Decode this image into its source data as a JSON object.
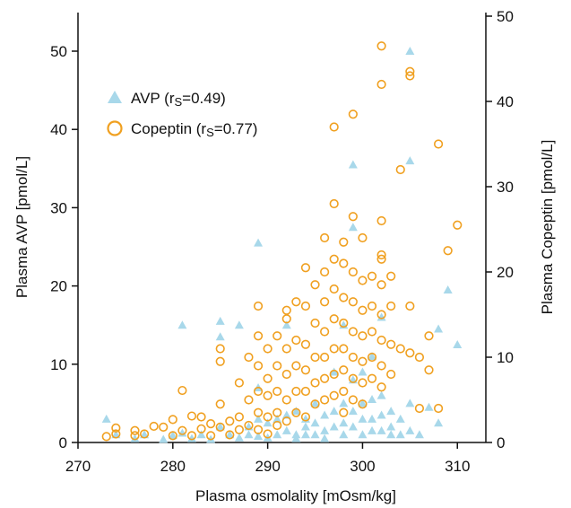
{
  "chart_data": {
    "type": "scatter",
    "xlabel": "Plasma osmolality [mOsm/kg]",
    "ylabel_left": "Plasma AVP [pmol/L]",
    "ylabel_right": "Plasma Copeptin [pmol/L]",
    "xlim": [
      270,
      313
    ],
    "ylim_left": [
      0,
      50
    ],
    "ylim_right": [
      0,
      50
    ],
    "xticks": [
      270,
      280,
      290,
      300,
      310
    ],
    "yticks_left": [
      0,
      10,
      20,
      30,
      40,
      50
    ],
    "yticks_right": [
      0,
      10,
      20,
      30,
      40,
      50
    ],
    "grid": false,
    "legend_position": "top-left",
    "legend": [
      {
        "marker": "triangle",
        "prefix": "AVP (r",
        "sub": "S",
        "suffix": "=0.49)"
      },
      {
        "marker": "circle",
        "prefix": "Copeptin (r",
        "sub": "S",
        "suffix": "=0.77)"
      }
    ],
    "colors": {
      "AVP": "#a8d8ea",
      "Copeptin": "#f0a020",
      "axis": "#111111"
    },
    "series": [
      {
        "name": "AVP",
        "axis": "left",
        "marker": "triangle",
        "points": [
          [
            273,
            3.0
          ],
          [
            274,
            1.0
          ],
          [
            276,
            0.5
          ],
          [
            277,
            1.0
          ],
          [
            279,
            0.4
          ],
          [
            280,
            0.9
          ],
          [
            281,
            15.0
          ],
          [
            281,
            1.2
          ],
          [
            282,
            0.5
          ],
          [
            283,
            1.0
          ],
          [
            284,
            0.4
          ],
          [
            285,
            15.5
          ],
          [
            285,
            13.5
          ],
          [
            285,
            2.0
          ],
          [
            286,
            1.0
          ],
          [
            287,
            15.0
          ],
          [
            287,
            0.6
          ],
          [
            288,
            2.0
          ],
          [
            288,
            1.0
          ],
          [
            289,
            25.5
          ],
          [
            289,
            7.0
          ],
          [
            289,
            3.0
          ],
          [
            289,
            0.8
          ],
          [
            290,
            2.5
          ],
          [
            290,
            0.6
          ],
          [
            291,
            3.0
          ],
          [
            291,
            1.0
          ],
          [
            292,
            15.0
          ],
          [
            292,
            3.5
          ],
          [
            292,
            1.5
          ],
          [
            293,
            4.0
          ],
          [
            293,
            1.0
          ],
          [
            293,
            0.5
          ],
          [
            294,
            3.0
          ],
          [
            294,
            2.0
          ],
          [
            294,
            1.0
          ],
          [
            295,
            5.0
          ],
          [
            295,
            2.5
          ],
          [
            295,
            1.0
          ],
          [
            296,
            3.5
          ],
          [
            296,
            1.5
          ],
          [
            296,
            0.5
          ],
          [
            297,
            9.0
          ],
          [
            297,
            4.0
          ],
          [
            297,
            2.0
          ],
          [
            298,
            15.0
          ],
          [
            298,
            5.0
          ],
          [
            298,
            2.5
          ],
          [
            298,
            1.0
          ],
          [
            299,
            35.5
          ],
          [
            299,
            27.5
          ],
          [
            299,
            8.0
          ],
          [
            299,
            4.0
          ],
          [
            299,
            2.0
          ],
          [
            300,
            9.0
          ],
          [
            300,
            5.0
          ],
          [
            300,
            3.0
          ],
          [
            300,
            1.0
          ],
          [
            301,
            11.0
          ],
          [
            301,
            5.5
          ],
          [
            301,
            3.0
          ],
          [
            301,
            1.5
          ],
          [
            302,
            16.0
          ],
          [
            302,
            6.0
          ],
          [
            302,
            3.5
          ],
          [
            302,
            1.5
          ],
          [
            303,
            4.0
          ],
          [
            303,
            2.0
          ],
          [
            303,
            1.0
          ],
          [
            304,
            3.0
          ],
          [
            304,
            1.0
          ],
          [
            305,
            50.0
          ],
          [
            305,
            36.0
          ],
          [
            305,
            5.0
          ],
          [
            305,
            1.5
          ],
          [
            306,
            1.0
          ],
          [
            307,
            4.5
          ],
          [
            308,
            14.5
          ],
          [
            308,
            2.5
          ],
          [
            309,
            19.5
          ],
          [
            310,
            12.5
          ]
        ]
      },
      {
        "name": "Copeptin",
        "axis": "right",
        "marker": "circle",
        "points": [
          [
            273,
            0.7
          ],
          [
            274,
            1.0
          ],
          [
            274,
            1.7
          ],
          [
            276,
            0.8
          ],
          [
            276,
            1.4
          ],
          [
            277,
            1.0
          ],
          [
            278,
            1.9
          ],
          [
            279,
            1.8
          ],
          [
            280,
            0.8
          ],
          [
            280,
            2.7
          ],
          [
            281,
            6.1
          ],
          [
            281,
            1.4
          ],
          [
            282,
            0.8
          ],
          [
            282,
            3.1
          ],
          [
            283,
            1.6
          ],
          [
            283,
            3.0
          ],
          [
            284,
            0.8
          ],
          [
            284,
            2.2
          ],
          [
            285,
            11.0
          ],
          [
            285,
            9.5
          ],
          [
            285,
            4.5
          ],
          [
            285,
            1.8
          ],
          [
            286,
            0.9
          ],
          [
            286,
            2.5
          ],
          [
            287,
            7.0
          ],
          [
            287,
            3.0
          ],
          [
            287,
            1.5
          ],
          [
            288,
            10.0
          ],
          [
            288,
            5.0
          ],
          [
            288,
            2.0
          ],
          [
            289,
            16.0
          ],
          [
            289,
            12.5
          ],
          [
            289,
            9.0
          ],
          [
            289,
            6.0
          ],
          [
            289,
            3.5
          ],
          [
            289,
            1.5
          ],
          [
            290,
            11.0
          ],
          [
            290,
            7.5
          ],
          [
            290,
            5.5
          ],
          [
            290,
            3.0
          ],
          [
            290,
            1.0
          ],
          [
            291,
            12.5
          ],
          [
            291,
            9.0
          ],
          [
            291,
            6.0
          ],
          [
            291,
            3.5
          ],
          [
            291,
            2.0
          ],
          [
            292,
            15.5
          ],
          [
            292,
            14.5
          ],
          [
            292,
            11.0
          ],
          [
            292,
            8.0
          ],
          [
            292,
            5.0
          ],
          [
            292,
            2.5
          ],
          [
            293,
            16.5
          ],
          [
            293,
            12.0
          ],
          [
            293,
            9.0
          ],
          [
            293,
            6.0
          ],
          [
            293,
            3.5
          ],
          [
            294,
            20.5
          ],
          [
            294,
            16.0
          ],
          [
            294,
            11.5
          ],
          [
            294,
            8.5
          ],
          [
            294,
            6.0
          ],
          [
            294,
            3.0
          ],
          [
            295,
            18.5
          ],
          [
            295,
            14.0
          ],
          [
            295,
            10.0
          ],
          [
            295,
            7.0
          ],
          [
            295,
            4.5
          ],
          [
            296,
            24.0
          ],
          [
            296,
            20.0
          ],
          [
            296,
            16.5
          ],
          [
            296,
            13.0
          ],
          [
            296,
            10.0
          ],
          [
            296,
            7.5
          ],
          [
            296,
            5.0
          ],
          [
            297,
            37.0
          ],
          [
            297,
            28.0
          ],
          [
            297,
            21.5
          ],
          [
            297,
            18.0
          ],
          [
            297,
            14.5
          ],
          [
            297,
            11.0
          ],
          [
            297,
            8.0
          ],
          [
            297,
            5.5
          ],
          [
            298,
            23.5
          ],
          [
            298,
            21.0
          ],
          [
            298,
            17.0
          ],
          [
            298,
            14.0
          ],
          [
            298,
            11.0
          ],
          [
            298,
            8.5
          ],
          [
            298,
            6.0
          ],
          [
            298,
            3.5
          ],
          [
            299,
            38.5
          ],
          [
            299,
            26.5
          ],
          [
            299,
            20.0
          ],
          [
            299,
            16.5
          ],
          [
            299,
            13.0
          ],
          [
            299,
            10.0
          ],
          [
            299,
            7.5
          ],
          [
            299,
            5.0
          ],
          [
            300,
            24.0
          ],
          [
            300,
            19.0
          ],
          [
            300,
            15.5
          ],
          [
            300,
            12.5
          ],
          [
            300,
            9.5
          ],
          [
            300,
            7.0
          ],
          [
            300,
            4.5
          ],
          [
            301,
            19.5
          ],
          [
            301,
            16.0
          ],
          [
            301,
            13.0
          ],
          [
            301,
            10.0
          ],
          [
            301,
            7.5
          ],
          [
            302,
            46.5
          ],
          [
            302,
            42.0
          ],
          [
            302,
            26.0
          ],
          [
            302,
            22.0
          ],
          [
            302,
            21.5
          ],
          [
            302,
            18.5
          ],
          [
            302,
            15.0
          ],
          [
            302,
            12.0
          ],
          [
            302,
            9.0
          ],
          [
            302,
            6.5
          ],
          [
            303,
            19.5
          ],
          [
            303,
            16.0
          ],
          [
            303,
            11.5
          ],
          [
            303,
            8.0
          ],
          [
            304,
            32.0
          ],
          [
            304,
            11.0
          ],
          [
            305,
            43.5
          ],
          [
            305,
            43.0
          ],
          [
            305,
            16.0
          ],
          [
            305,
            10.5
          ],
          [
            306,
            10.0
          ],
          [
            306,
            4.0
          ],
          [
            307,
            12.5
          ],
          [
            307,
            8.5
          ],
          [
            308,
            35.0
          ],
          [
            308,
            4.0
          ],
          [
            309,
            22.5
          ],
          [
            310,
            25.5
          ]
        ]
      }
    ]
  }
}
